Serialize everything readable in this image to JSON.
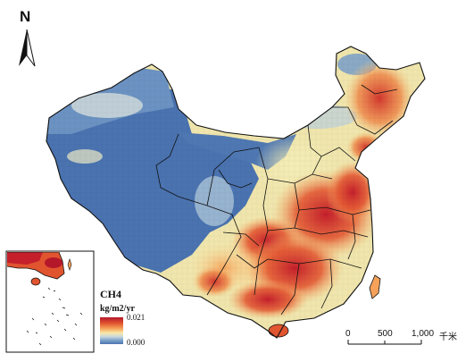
{
  "north_arrow": {
    "letter": "N"
  },
  "legend": {
    "title": "CH4",
    "unit": "kg/m2/yr",
    "max_label": "0.021",
    "min_label": "0.000",
    "colors": [
      "#b5172a",
      "#e0542f",
      "#f6a25a",
      "#f9e7a7",
      "#c9d8de",
      "#7ba1c8",
      "#4a73b0"
    ]
  },
  "scale_bar": {
    "labels": [
      "0",
      "500",
      "1,000"
    ],
    "unit": "千米"
  },
  "inset": {
    "name": "South China Sea islands inset"
  }
}
